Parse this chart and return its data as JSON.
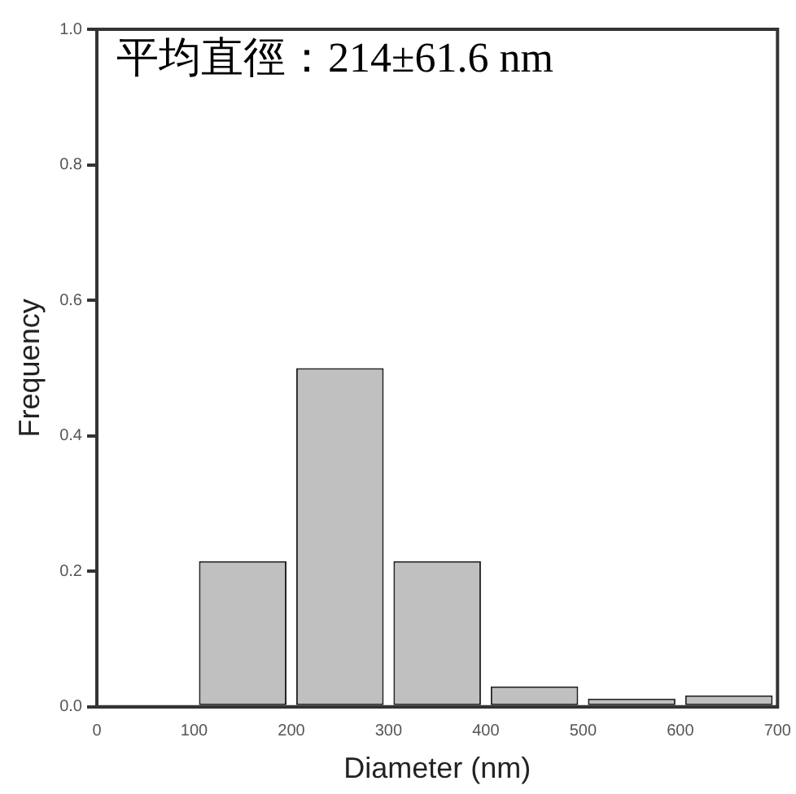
{
  "chart_data": {
    "type": "histogram",
    "xlabel": "Diameter (nm)",
    "ylabel": "Frequency",
    "annotations": [
      "平均直徑：214±61.6 nm"
    ],
    "bins": [
      100,
      200,
      300,
      400,
      500,
      600,
      700
    ],
    "values": [
      0.215,
      0.5,
      0.215,
      0.03,
      0.012,
      0.017
    ],
    "color": "#c0c0c0",
    "xlim": [
      0,
      700
    ],
    "xticks": [
      0,
      100,
      200,
      300,
      400,
      500,
      600,
      700
    ],
    "ylim": [
      0,
      1
    ],
    "yticks": [
      {
        "value": 0,
        "label": "0.0"
      },
      {
        "value": 0.2,
        "label": "0.2"
      },
      {
        "value": 0.4,
        "label": "0.4"
      },
      {
        "value": 0.6,
        "label": "0.6"
      },
      {
        "value": 0.8,
        "label": "0.8"
      },
      {
        "value": 1,
        "label": "1.0"
      }
    ],
    "grid": false,
    "legend": false
  }
}
